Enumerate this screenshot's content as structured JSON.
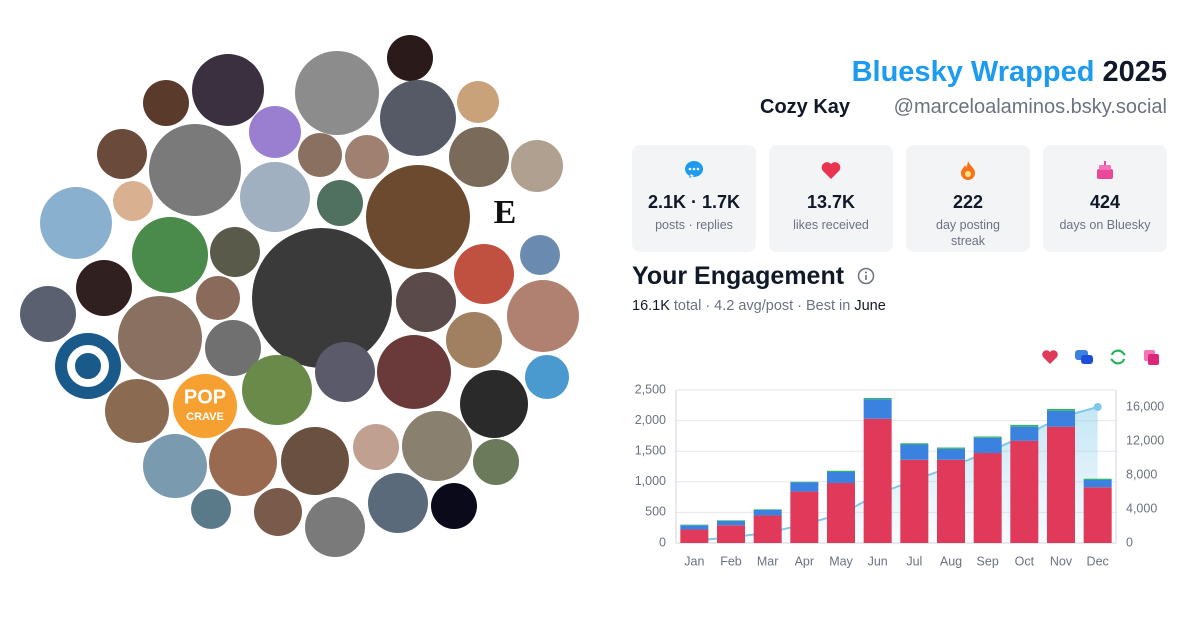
{
  "avatars": {
    "labels": [
      "E",
      "POP",
      "CRAVE"
    ]
  },
  "header": {
    "title": "Bluesky Wrapped",
    "year": "2025",
    "name": "Cozy Kay",
    "handle": "@marceloalaminos.bsky.social"
  },
  "stats": [
    {
      "value": "2.1K · 1.7K",
      "label": "posts · replies"
    },
    {
      "value": "13.7K",
      "label": "likes received"
    },
    {
      "value": "222",
      "label": "day posting streak"
    },
    {
      "value": "424",
      "label": "days on Bluesky"
    }
  ],
  "engagement": {
    "title": "Your Engagement",
    "summary": [
      "16.1K",
      "total",
      "·",
      "4.2 avg/post",
      "·",
      "Best in",
      "June"
    ]
  },
  "chart_data": {
    "type": "stacked-bar-line",
    "categories": [
      "Jan",
      "Feb",
      "Mar",
      "Apr",
      "May",
      "Jun",
      "Jul",
      "Aug",
      "Sep",
      "Oct",
      "Nov",
      "Dec"
    ],
    "series": [
      {
        "color": "#e0395a",
        "values": [
          220,
          290,
          450,
          840,
          980,
          2030,
          1360,
          1360,
          1470,
          1670,
          1900,
          910
        ]
      },
      {
        "color": "#3b82e0",
        "values": [
          70,
          70,
          90,
          150,
          180,
          320,
          250,
          180,
          250,
          230,
          260,
          120
        ]
      },
      {
        "color": "#2fb36a",
        "values": [
          10,
          10,
          10,
          10,
          20,
          20,
          20,
          20,
          20,
          30,
          30,
          20
        ]
      },
      {
        "type": "line",
        "axis": "y2",
        "color": "#7fc8ea",
        "values": [
          300,
          660,
          1200,
          2200,
          3380,
          5750,
          7400,
          8950,
          10700,
          12600,
          14800,
          16000
        ]
      }
    ],
    "ylim": [
      0,
      2500
    ],
    "yticks": [
      0,
      500,
      {
        "value": 1000,
        "label": "1,000"
      },
      {
        "value": 1500,
        "label": "1,500"
      },
      {
        "value": 2000,
        "label": "2,000"
      },
      {
        "value": 2500,
        "label": "2,500"
      }
    ],
    "y2lim": [
      0,
      18000
    ],
    "y2ticks": [
      0,
      {
        "value": 4000,
        "label": "4,000"
      },
      {
        "value": 8000,
        "label": "8,000"
      },
      {
        "value": 12000,
        "label": "12,000"
      },
      {
        "value": 16000,
        "label": "16,000"
      }
    ],
    "grid": true
  }
}
